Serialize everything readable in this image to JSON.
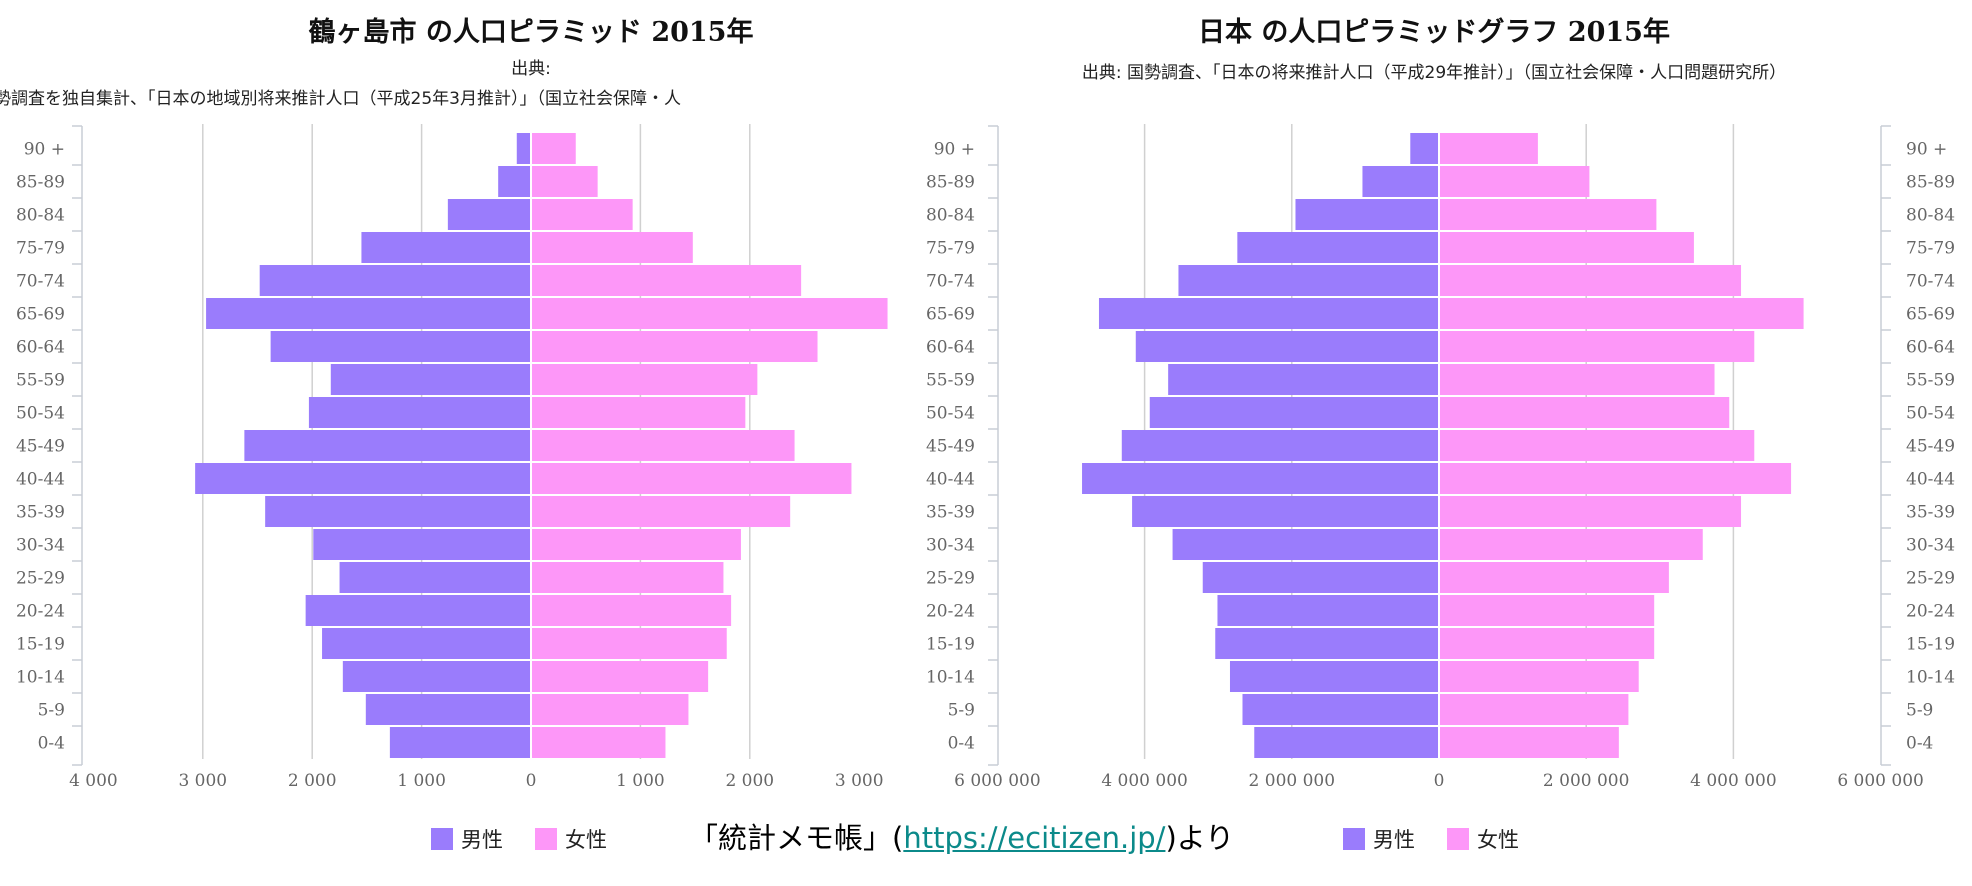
{
  "colors": {
    "male": "#9a7cfc",
    "female": "#fd97f8",
    "grid": "#d0d0d0",
    "axis": "#c8cdd6"
  },
  "legend": {
    "male": "男性",
    "female": "女性"
  },
  "credit": {
    "prefix": "「統計メモ帳」(",
    "link": "https://ecitizen.jp/",
    "suffix": ")より"
  },
  "chart_data": [
    {
      "type": "bar",
      "orientation": "horizontal-pyramid",
      "title": "鶴ヶ島市 の人口ピラミッド 2015年",
      "subtitle_line1": "出典:",
      "subtitle_line2": "勢調査を独自集計、「日本の地域別将来推計人口（平成25年3月推計）」（国立社会保障・人",
      "categories": [
        "90 +",
        "85-89",
        "80-84",
        "75-79",
        "70-74",
        "65-69",
        "60-64",
        "55-59",
        "50-54",
        "45-49",
        "40-44",
        "35-39",
        "30-34",
        "25-29",
        "20-24",
        "15-19",
        "10-14",
        "5-9",
        "0-4"
      ],
      "series": [
        {
          "name": "男性",
          "values": [
            130,
            300,
            760,
            1550,
            2480,
            2970,
            2380,
            1830,
            2030,
            2620,
            3070,
            2430,
            1990,
            1750,
            2060,
            1910,
            1720,
            1510,
            1290
          ]
        },
        {
          "name": "女性",
          "values": [
            400,
            600,
            920,
            1470,
            2460,
            3250,
            2610,
            2060,
            1950,
            2400,
            2920,
            2360,
            1910,
            1750,
            1820,
            1780,
            1610,
            1430,
            1220
          ]
        }
      ],
      "xlim": [
        -4000,
        3000
      ],
      "xticks": [
        -4000,
        -3000,
        -2000,
        -1000,
        0,
        1000,
        2000,
        3000
      ],
      "xtick_labels": [
        "4 000",
        "3 000",
        "2 000",
        "1 000",
        "0",
        "1 000",
        "2 000",
        "3 000"
      ],
      "grid": true,
      "legend": "bottom"
    },
    {
      "type": "bar",
      "orientation": "horizontal-pyramid",
      "title": "日本 の人口ピラミッドグラフ 2015年",
      "subtitle_line1": "出典: 国勢調査、「日本の将来推計人口（平成29年推計）」（国立社会保障・人口問題研究所）",
      "categories": [
        "90 +",
        "85-89",
        "80-84",
        "75-79",
        "70-74",
        "65-69",
        "60-64",
        "55-59",
        "50-54",
        "45-49",
        "40-44",
        "35-39",
        "30-34",
        "25-29",
        "20-24",
        "15-19",
        "10-14",
        "5-9",
        "0-4"
      ],
      "series": [
        {
          "name": "男性",
          "values": [
            390000,
            1040000,
            1950000,
            2740000,
            3540000,
            4620000,
            4120000,
            3680000,
            3930000,
            4310000,
            4850000,
            4170000,
            3620000,
            3210000,
            3010000,
            3040000,
            2840000,
            2670000,
            2510000
          ]
        },
        {
          "name": "女性",
          "values": [
            1330000,
            2030000,
            2940000,
            3450000,
            4090000,
            4940000,
            4270000,
            3730000,
            3930000,
            4270000,
            4770000,
            4090000,
            3570000,
            3110000,
            2910000,
            2910000,
            2700000,
            2560000,
            2430000
          ]
        }
      ],
      "xlim": [
        -6000000,
        6000000
      ],
      "xticks": [
        -6000000,
        -4000000,
        -2000000,
        0,
        2000000,
        4000000,
        6000000
      ],
      "xtick_labels": [
        "6 000 000",
        "4 000 000",
        "2 000 000",
        "0",
        "2 000 000",
        "4 000 000",
        "6 000 000"
      ],
      "grid": true,
      "legend": "bottom"
    }
  ]
}
